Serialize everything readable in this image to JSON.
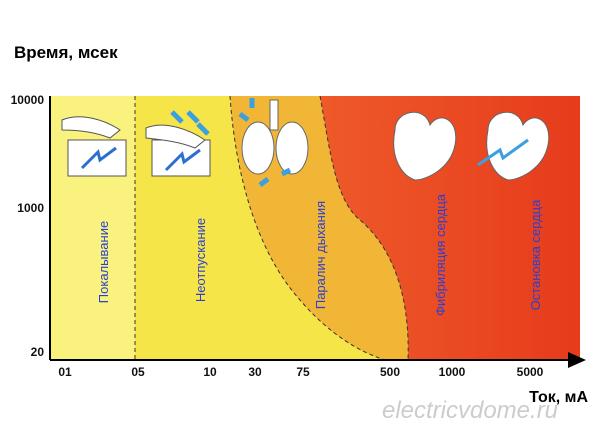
{
  "title": "Время, мсек",
  "x_axis": {
    "label": "Ток, мА",
    "ticks": [
      "01",
      "05",
      "10",
      "30",
      "75",
      "500",
      "1000",
      "5000"
    ]
  },
  "y_axis": {
    "ticks": [
      "10000",
      "1000",
      "20"
    ]
  },
  "zones": [
    {
      "label": "Покалывание"
    },
    {
      "label": "Неотпускание"
    },
    {
      "label": "Паралич дыхания"
    },
    {
      "label": "Фибриляция сердца"
    },
    {
      "label": "Остановка сердца"
    }
  ],
  "watermark": "electricvdome.ru"
}
